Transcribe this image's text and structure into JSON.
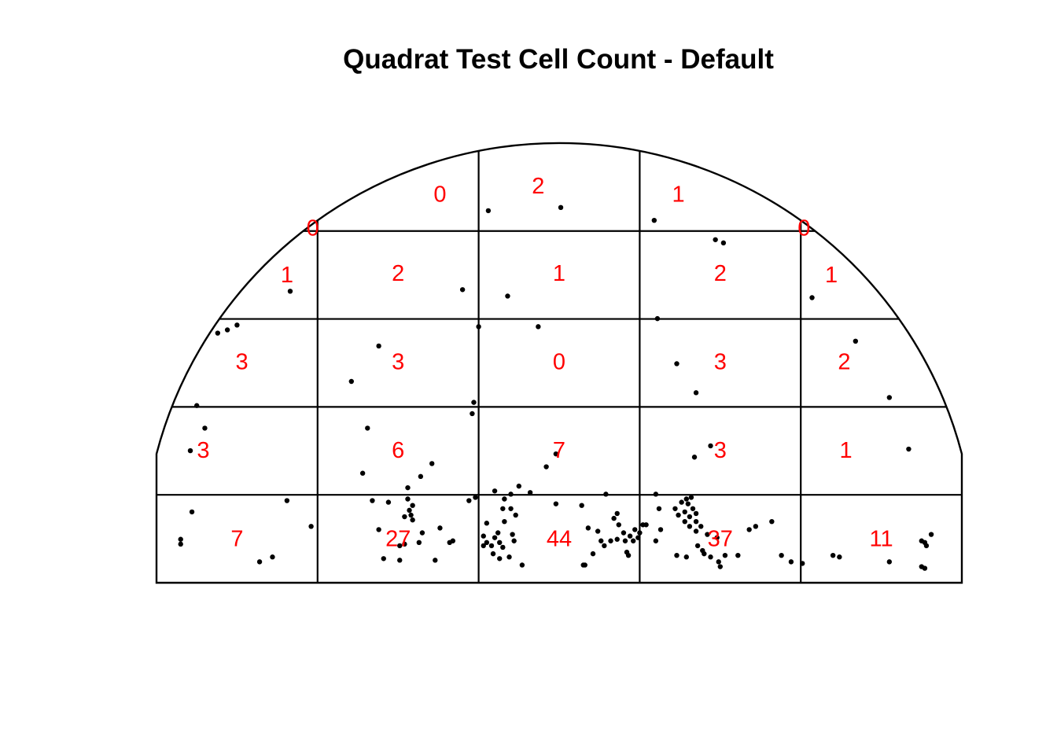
{
  "chart_data": {
    "type": "scatter",
    "title": "Quadrat Test Cell Count - Default",
    "window": {
      "shape": "half-disc",
      "x_range": [
        0,
        5
      ],
      "y_range": [
        0,
        2.73
      ]
    },
    "grid": {
      "columns": 5,
      "rows": 5
    },
    "colors": {
      "counts": "#ff0000",
      "points": "#000000",
      "lines": "#000000"
    },
    "counts": [
      {
        "col": 0,
        "row": 0,
        "value": "7",
        "x": 0.5,
        "y": 0.27
      },
      {
        "col": 1,
        "row": 0,
        "value": "27",
        "x": 1.5,
        "y": 0.27
      },
      {
        "col": 2,
        "row": 0,
        "value": "44",
        "x": 2.5,
        "y": 0.27
      },
      {
        "col": 3,
        "row": 0,
        "value": "37",
        "x": 3.5,
        "y": 0.27
      },
      {
        "col": 4,
        "row": 0,
        "value": "11",
        "x": 4.5,
        "y": 0.27
      },
      {
        "col": 0,
        "row": 1,
        "value": "3",
        "x": 0.29,
        "y": 0.82
      },
      {
        "col": 1,
        "row": 1,
        "value": "6",
        "x": 1.5,
        "y": 0.82
      },
      {
        "col": 2,
        "row": 1,
        "value": "7",
        "x": 2.5,
        "y": 0.82
      },
      {
        "col": 3,
        "row": 1,
        "value": "3",
        "x": 3.5,
        "y": 0.82
      },
      {
        "col": 4,
        "row": 1,
        "value": "1",
        "x": 4.28,
        "y": 0.82
      },
      {
        "col": 0,
        "row": 2,
        "value": "3",
        "x": 0.53,
        "y": 1.37
      },
      {
        "col": 1,
        "row": 2,
        "value": "3",
        "x": 1.5,
        "y": 1.37
      },
      {
        "col": 2,
        "row": 2,
        "value": "0",
        "x": 2.5,
        "y": 1.37
      },
      {
        "col": 3,
        "row": 2,
        "value": "3",
        "x": 3.5,
        "y": 1.37
      },
      {
        "col": 4,
        "row": 2,
        "value": "2",
        "x": 4.27,
        "y": 1.37
      },
      {
        "col": 0,
        "row": 3,
        "value": "1",
        "x": 0.81,
        "y": 1.91
      },
      {
        "col": 1,
        "row": 3,
        "value": "2",
        "x": 1.5,
        "y": 1.92
      },
      {
        "col": 2,
        "row": 3,
        "value": "1",
        "x": 2.5,
        "y": 1.92
      },
      {
        "col": 3,
        "row": 3,
        "value": "2",
        "x": 3.5,
        "y": 1.92
      },
      {
        "col": 4,
        "row": 3,
        "value": "1",
        "x": 4.19,
        "y": 1.91
      },
      {
        "col": 0,
        "row": 4,
        "value": "0",
        "x": 0.97,
        "y": 2.2
      },
      {
        "col": 1,
        "row": 4,
        "value": "0",
        "x": 1.76,
        "y": 2.41
      },
      {
        "col": 2,
        "row": 4,
        "value": "2",
        "x": 2.37,
        "y": 2.46
      },
      {
        "col": 3,
        "row": 4,
        "value": "1",
        "x": 3.24,
        "y": 2.41
      },
      {
        "col": 4,
        "row": 4,
        "value": "0",
        "x": 4.02,
        "y": 2.2
      }
    ],
    "points": [
      [
        0.15,
        0.27
      ],
      [
        0.15,
        0.24
      ],
      [
        0.22,
        0.44
      ],
      [
        0.81,
        0.51
      ],
      [
        0.96,
        0.35
      ],
      [
        0.72,
        0.16
      ],
      [
        0.64,
        0.13
      ],
      [
        1.34,
        0.51
      ],
      [
        1.44,
        0.5
      ],
      [
        1.56,
        0.52
      ],
      [
        1.57,
        0.45
      ],
      [
        1.59,
        0.39
      ],
      [
        1.54,
        0.41
      ],
      [
        1.59,
        0.48
      ],
      [
        1.58,
        0.42
      ],
      [
        1.38,
        0.33
      ],
      [
        1.51,
        0.23
      ],
      [
        1.54,
        0.24
      ],
      [
        1.63,
        0.25
      ],
      [
        1.65,
        0.31
      ],
      [
        1.76,
        0.34
      ],
      [
        1.82,
        0.25
      ],
      [
        1.84,
        0.26
      ],
      [
        1.41,
        0.15
      ],
      [
        1.51,
        0.14
      ],
      [
        1.73,
        0.14
      ],
      [
        1.94,
        0.51
      ],
      [
        1.98,
        0.53
      ],
      [
        2.1,
        0.57
      ],
      [
        2.05,
        0.37
      ],
      [
        2.03,
        0.29
      ],
      [
        2.03,
        0.23
      ],
      [
        2.05,
        0.25
      ],
      [
        2.1,
        0.28
      ],
      [
        2.08,
        0.23
      ],
      [
        2.09,
        0.18
      ],
      [
        2.15,
        0.22
      ],
      [
        2.13,
        0.25
      ],
      [
        2.12,
        0.31
      ],
      [
        2.16,
        0.38
      ],
      [
        2.15,
        0.46
      ],
      [
        2.16,
        0.52
      ],
      [
        2.2,
        0.46
      ],
      [
        2.23,
        0.42
      ],
      [
        2.21,
        0.3
      ],
      [
        2.22,
        0.26
      ],
      [
        2.19,
        0.16
      ],
      [
        2.13,
        0.15
      ],
      [
        2.2,
        0.55
      ],
      [
        2.25,
        0.6
      ],
      [
        2.32,
        0.56
      ],
      [
        2.27,
        0.11
      ],
      [
        2.48,
        0.49
      ],
      [
        2.64,
        0.48
      ],
      [
        2.79,
        0.55
      ],
      [
        2.68,
        0.34
      ],
      [
        2.74,
        0.32
      ],
      [
        2.76,
        0.26
      ],
      [
        2.71,
        0.18
      ],
      [
        2.65,
        0.11
      ],
      [
        2.66,
        0.11
      ],
      [
        2.78,
        0.23
      ],
      [
        2.82,
        0.26
      ],
      [
        2.86,
        0.27
      ],
      [
        2.9,
        0.31
      ],
      [
        2.91,
        0.26
      ],
      [
        2.94,
        0.29
      ],
      [
        2.96,
        0.26
      ],
      [
        2.97,
        0.33
      ],
      [
        2.99,
        0.28
      ],
      [
        2.84,
        0.4
      ],
      [
        2.86,
        0.43
      ],
      [
        2.87,
        0.36
      ],
      [
        2.92,
        0.19
      ],
      [
        2.93,
        0.17
      ],
      [
        3.0,
        0.31
      ],
      [
        3.02,
        0.36
      ],
      [
        3.04,
        0.36
      ],
      [
        3.1,
        0.26
      ],
      [
        3.1,
        0.55
      ],
      [
        3.12,
        0.46
      ],
      [
        3.13,
        0.33
      ],
      [
        3.23,
        0.17
      ],
      [
        3.29,
        0.16
      ],
      [
        3.22,
        0.46
      ],
      [
        3.24,
        0.42
      ],
      [
        3.26,
        0.5
      ],
      [
        3.28,
        0.44
      ],
      [
        3.28,
        0.38
      ],
      [
        3.29,
        0.52
      ],
      [
        3.3,
        0.49
      ],
      [
        3.31,
        0.41
      ],
      [
        3.31,
        0.35
      ],
      [
        3.32,
        0.53
      ],
      [
        3.33,
        0.46
      ],
      [
        3.35,
        0.43
      ],
      [
        3.35,
        0.38
      ],
      [
        3.35,
        0.32
      ],
      [
        3.36,
        0.23
      ],
      [
        3.39,
        0.2
      ],
      [
        3.4,
        0.18
      ],
      [
        3.44,
        0.16
      ],
      [
        3.38,
        0.35
      ],
      [
        3.42,
        0.3
      ],
      [
        3.48,
        0.28
      ],
      [
        3.49,
        0.13
      ],
      [
        3.5,
        0.1
      ],
      [
        3.53,
        0.17
      ],
      [
        3.61,
        0.17
      ],
      [
        3.68,
        0.33
      ],
      [
        3.72,
        0.35
      ],
      [
        3.82,
        0.38
      ],
      [
        3.88,
        0.17
      ],
      [
        3.94,
        0.13
      ],
      [
        4.01,
        0.12
      ],
      [
        4.2,
        0.17
      ],
      [
        4.24,
        0.16
      ],
      [
        4.55,
        0.13
      ],
      [
        4.75,
        0.26
      ],
      [
        4.77,
        0.25
      ],
      [
        4.78,
        0.23
      ],
      [
        4.75,
        0.1
      ],
      [
        4.77,
        0.09
      ],
      [
        4.81,
        0.3
      ],
      [
        0.38,
        1.55
      ],
      [
        0.44,
        1.57
      ],
      [
        0.5,
        1.6
      ],
      [
        0.25,
        1.1
      ],
      [
        0.3,
        0.96
      ],
      [
        0.21,
        0.82
      ],
      [
        0.83,
        1.81
      ],
      [
        1.21,
        1.25
      ],
      [
        1.38,
        1.47
      ],
      [
        2.18,
        1.78
      ],
      [
        2.37,
        1.59
      ],
      [
        1.31,
        0.96
      ],
      [
        1.28,
        0.68
      ],
      [
        1.64,
        0.66
      ],
      [
        1.56,
        0.59
      ],
      [
        1.71,
        0.74
      ],
      [
        1.96,
        1.05
      ],
      [
        1.97,
        1.12
      ],
      [
        1.9,
        1.82
      ],
      [
        2.0,
        1.59
      ],
      [
        2.06,
        2.31
      ],
      [
        2.51,
        2.33
      ],
      [
        2.42,
        0.72
      ],
      [
        2.48,
        0.8
      ],
      [
        3.09,
        2.25
      ],
      [
        3.11,
        1.64
      ],
      [
        3.23,
        1.36
      ],
      [
        3.35,
        1.18
      ],
      [
        3.34,
        0.78
      ],
      [
        3.44,
        0.85
      ],
      [
        3.47,
        2.13
      ],
      [
        3.52,
        2.11
      ],
      [
        4.07,
        1.77
      ],
      [
        4.34,
        1.5
      ],
      [
        4.55,
        1.15
      ],
      [
        4.67,
        0.83
      ]
    ]
  }
}
